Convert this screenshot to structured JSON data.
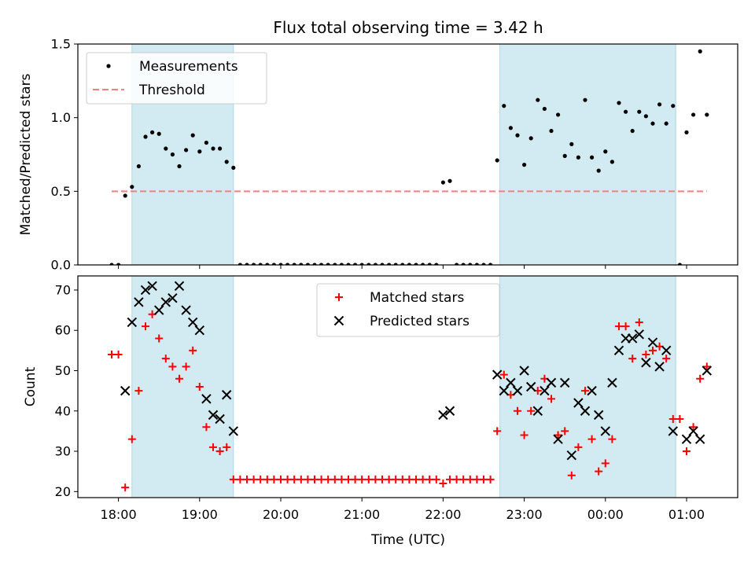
{
  "chart_data": {
    "type": "scatter",
    "title": "Flux total observing time = 3.42 h",
    "xlabel": "Time (UTC)",
    "x_unit": "hours",
    "x_range": [
      17.5,
      1.63
    ],
    "x_ticks": [
      {
        "t": 18,
        "label": "18:00"
      },
      {
        "t": 19,
        "label": "19:00"
      },
      {
        "t": 20,
        "label": "20:00"
      },
      {
        "t": 21,
        "label": "21:00"
      },
      {
        "t": 22,
        "label": "22:00"
      },
      {
        "t": 23,
        "label": "23:00"
      },
      {
        "t": 24,
        "label": "00:00"
      },
      {
        "t": 25,
        "label": "01:00"
      }
    ],
    "shaded_intervals": [
      {
        "start": "18:10",
        "end": "19:25"
      },
      {
        "start": "22:42",
        "end": "00:52"
      }
    ],
    "shade_color": "#add8e6",
    "panels": [
      {
        "ylabel": "Matched/Predicted stars",
        "ylim": [
          0,
          1.5
        ],
        "yticks": [
          "0.0",
          "0.5",
          "1.0",
          "1.5"
        ],
        "legend_position": "upper-left",
        "series": [
          {
            "name": "Measurements",
            "marker": "dot",
            "color": "#000000",
            "points": [
              [
                "17:55",
                0.0
              ],
              [
                "18:00",
                0.0
              ],
              [
                "18:05",
                0.47
              ],
              [
                "18:10",
                0.53
              ],
              [
                "18:15",
                0.67
              ],
              [
                "18:20",
                0.87
              ],
              [
                "18:25",
                0.9
              ],
              [
                "18:30",
                0.89
              ],
              [
                "18:35",
                0.79
              ],
              [
                "18:40",
                0.75
              ],
              [
                "18:45",
                0.67
              ],
              [
                "18:50",
                0.78
              ],
              [
                "18:55",
                0.88
              ],
              [
                "19:00",
                0.77
              ],
              [
                "19:05",
                0.83
              ],
              [
                "19:10",
                0.79
              ],
              [
                "19:15",
                0.79
              ],
              [
                "19:20",
                0.7
              ],
              [
                "19:25",
                0.66
              ],
              [
                "19:30",
                0.0
              ],
              [
                "19:35",
                0.0
              ],
              [
                "19:40",
                0.0
              ],
              [
                "19:45",
                0.0
              ],
              [
                "19:50",
                0.0
              ],
              [
                "19:55",
                0.0
              ],
              [
                "20:00",
                0.0
              ],
              [
                "20:05",
                0.0
              ],
              [
                "20:10",
                0.0
              ],
              [
                "20:15",
                0.0
              ],
              [
                "20:20",
                0.0
              ],
              [
                "20:25",
                0.0
              ],
              [
                "20:30",
                0.0
              ],
              [
                "20:35",
                0.0
              ],
              [
                "20:40",
                0.0
              ],
              [
                "20:45",
                0.0
              ],
              [
                "20:50",
                0.0
              ],
              [
                "20:55",
                0.0
              ],
              [
                "21:00",
                0.0
              ],
              [
                "21:05",
                0.0
              ],
              [
                "21:10",
                0.0
              ],
              [
                "21:15",
                0.0
              ],
              [
                "21:20",
                0.0
              ],
              [
                "21:25",
                0.0
              ],
              [
                "21:30",
                0.0
              ],
              [
                "21:35",
                0.0
              ],
              [
                "21:40",
                0.0
              ],
              [
                "21:45",
                0.0
              ],
              [
                "21:50",
                0.0
              ],
              [
                "21:55",
                0.0
              ],
              [
                "22:00",
                0.56
              ],
              [
                "22:05",
                0.57
              ],
              [
                "22:10",
                0.0
              ],
              [
                "22:15",
                0.0
              ],
              [
                "22:20",
                0.0
              ],
              [
                "22:25",
                0.0
              ],
              [
                "22:30",
                0.0
              ],
              [
                "22:35",
                0.0
              ],
              [
                "22:40",
                0.71
              ],
              [
                "22:45",
                1.08
              ],
              [
                "22:50",
                0.93
              ],
              [
                "22:55",
                0.88
              ],
              [
                "23:00",
                0.68
              ],
              [
                "23:05",
                0.86
              ],
              [
                "23:10",
                1.12
              ],
              [
                "23:15",
                1.06
              ],
              [
                "23:20",
                0.91
              ],
              [
                "23:25",
                1.02
              ],
              [
                "23:30",
                0.74
              ],
              [
                "23:35",
                0.82
              ],
              [
                "23:40",
                0.73
              ],
              [
                "23:45",
                1.12
              ],
              [
                "23:50",
                0.73
              ],
              [
                "23:55",
                0.64
              ],
              [
                "00:00",
                0.77
              ],
              [
                "00:05",
                0.7
              ],
              [
                "00:10",
                1.1
              ],
              [
                "00:15",
                1.04
              ],
              [
                "00:20",
                0.91
              ],
              [
                "00:25",
                1.04
              ],
              [
                "00:30",
                1.01
              ],
              [
                "00:35",
                0.96
              ],
              [
                "00:40",
                1.09
              ],
              [
                "00:45",
                0.96
              ],
              [
                "00:50",
                1.08
              ],
              [
                "00:55",
                0.0
              ],
              [
                "01:00",
                0.9
              ],
              [
                "01:05",
                1.02
              ],
              [
                "01:10",
                1.45
              ],
              [
                "01:15",
                1.02
              ]
            ]
          },
          {
            "name": "Threshold",
            "marker": "dashed-line",
            "color": "#f08080",
            "y": 0.5,
            "x_start": "17:55",
            "x_end": "01:15"
          }
        ]
      },
      {
        "ylabel": "Count",
        "ylim": [
          18.5,
          73.5
        ],
        "yticks": [
          "20",
          "30",
          "40",
          "50",
          "60",
          "70"
        ],
        "legend_position": "upper-center",
        "series": [
          {
            "name": "Matched stars",
            "marker": "plus",
            "color": "#ff0000",
            "points": [
              [
                "17:55",
                54
              ],
              [
                "18:00",
                54
              ],
              [
                "18:05",
                21
              ],
              [
                "18:10",
                33
              ],
              [
                "18:15",
                45
              ],
              [
                "18:20",
                61
              ],
              [
                "18:25",
                64
              ],
              [
                "18:30",
                58
              ],
              [
                "18:35",
                53
              ],
              [
                "18:40",
                51
              ],
              [
                "18:45",
                48
              ],
              [
                "18:50",
                51
              ],
              [
                "18:55",
                55
              ],
              [
                "19:00",
                46
              ],
              [
                "19:05",
                36
              ],
              [
                "19:10",
                31
              ],
              [
                "19:15",
                30
              ],
              [
                "19:20",
                31
              ],
              [
                "19:25",
                23
              ],
              [
                "19:30",
                23
              ],
              [
                "19:35",
                23
              ],
              [
                "19:40",
                23
              ],
              [
                "19:45",
                23
              ],
              [
                "19:50",
                23
              ],
              [
                "19:55",
                23
              ],
              [
                "20:00",
                23
              ],
              [
                "20:05",
                23
              ],
              [
                "20:10",
                23
              ],
              [
                "20:15",
                23
              ],
              [
                "20:20",
                23
              ],
              [
                "20:25",
                23
              ],
              [
                "20:30",
                23
              ],
              [
                "20:35",
                23
              ],
              [
                "20:40",
                23
              ],
              [
                "20:45",
                23
              ],
              [
                "20:50",
                23
              ],
              [
                "20:55",
                23
              ],
              [
                "21:00",
                23
              ],
              [
                "21:05",
                23
              ],
              [
                "21:10",
                23
              ],
              [
                "21:15",
                23
              ],
              [
                "21:20",
                23
              ],
              [
                "21:25",
                23
              ],
              [
                "21:30",
                23
              ],
              [
                "21:35",
                23
              ],
              [
                "21:40",
                23
              ],
              [
                "21:45",
                23
              ],
              [
                "21:50",
                23
              ],
              [
                "21:55",
                23
              ],
              [
                "22:00",
                22
              ],
              [
                "22:05",
                23
              ],
              [
                "22:10",
                23
              ],
              [
                "22:15",
                23
              ],
              [
                "22:20",
                23
              ],
              [
                "22:25",
                23
              ],
              [
                "22:30",
                23
              ],
              [
                "22:35",
                23
              ],
              [
                "22:40",
                35
              ],
              [
                "22:45",
                49
              ],
              [
                "22:50",
                44
              ],
              [
                "22:55",
                40
              ],
              [
                "23:00",
                34
              ],
              [
                "23:05",
                40
              ],
              [
                "23:10",
                45
              ],
              [
                "23:15",
                48
              ],
              [
                "23:20",
                43
              ],
              [
                "23:25",
                34
              ],
              [
                "23:30",
                35
              ],
              [
                "23:35",
                24
              ],
              [
                "23:40",
                31
              ],
              [
                "23:45",
                45
              ],
              [
                "23:50",
                33
              ],
              [
                "23:55",
                25
              ],
              [
                "00:00",
                27
              ],
              [
                "00:05",
                33
              ],
              [
                "00:10",
                61
              ],
              [
                "00:15",
                61
              ],
              [
                "00:20",
                53
              ],
              [
                "00:25",
                62
              ],
              [
                "00:30",
                54
              ],
              [
                "00:35",
                55
              ],
              [
                "00:40",
                56
              ],
              [
                "00:45",
                53
              ],
              [
                "00:50",
                38
              ],
              [
                "00:55",
                38
              ],
              [
                "01:00",
                30
              ],
              [
                "01:05",
                36
              ],
              [
                "01:10",
                48
              ],
              [
                "01:15",
                51
              ]
            ]
          },
          {
            "name": "Predicted stars",
            "marker": "x",
            "color": "#000000",
            "points": [
              [
                "18:05",
                45
              ],
              [
                "18:10",
                62
              ],
              [
                "18:15",
                67
              ],
              [
                "18:20",
                70
              ],
              [
                "18:25",
                71
              ],
              [
                "18:30",
                65
              ],
              [
                "18:35",
                67
              ],
              [
                "18:40",
                68
              ],
              [
                "18:45",
                71
              ],
              [
                "18:50",
                65
              ],
              [
                "18:55",
                62
              ],
              [
                "19:00",
                60
              ],
              [
                "19:05",
                43
              ],
              [
                "19:10",
                39
              ],
              [
                "19:15",
                38
              ],
              [
                "19:20",
                44
              ],
              [
                "19:25",
                35
              ],
              [
                "22:00",
                39
              ],
              [
                "22:05",
                40
              ],
              [
                "22:40",
                49
              ],
              [
                "22:45",
                45
              ],
              [
                "22:50",
                47
              ],
              [
                "22:55",
                45
              ],
              [
                "23:00",
                50
              ],
              [
                "23:05",
                46
              ],
              [
                "23:10",
                40
              ],
              [
                "23:15",
                45
              ],
              [
                "23:20",
                47
              ],
              [
                "23:25",
                33
              ],
              [
                "23:30",
                47
              ],
              [
                "23:35",
                29
              ],
              [
                "23:40",
                42
              ],
              [
                "23:45",
                40
              ],
              [
                "23:50",
                45
              ],
              [
                "23:55",
                39
              ],
              [
                "00:00",
                35
              ],
              [
                "00:05",
                47
              ],
              [
                "00:10",
                55
              ],
              [
                "00:15",
                58
              ],
              [
                "00:20",
                58
              ],
              [
                "00:25",
                59
              ],
              [
                "00:30",
                52
              ],
              [
                "00:35",
                57
              ],
              [
                "00:40",
                51
              ],
              [
                "00:45",
                55
              ],
              [
                "00:50",
                35
              ],
              [
                "01:00",
                33
              ],
              [
                "01:05",
                35
              ],
              [
                "01:10",
                33
              ],
              [
                "01:15",
                50
              ]
            ]
          }
        ]
      }
    ]
  }
}
